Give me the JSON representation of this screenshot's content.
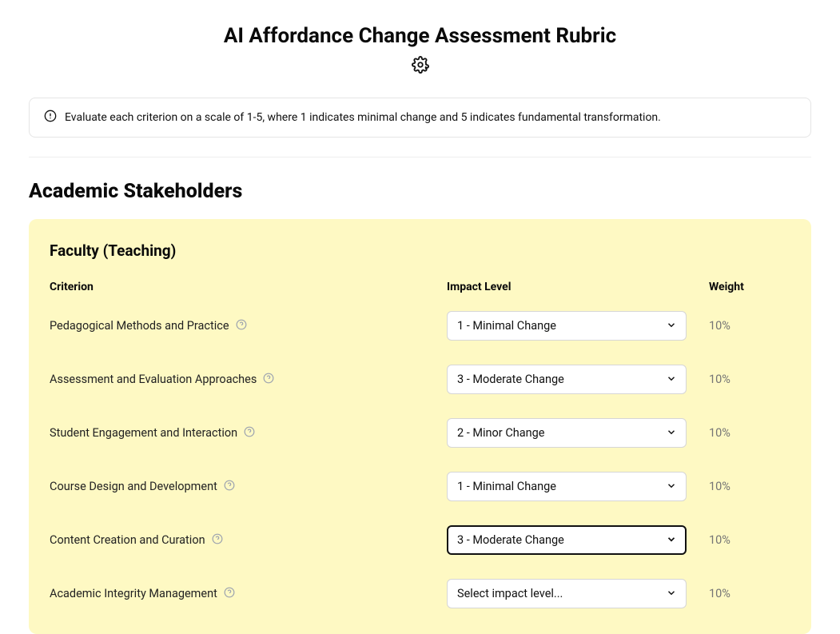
{
  "title": "AI Affordance Change Assessment Rubric",
  "info_text": "Evaluate each criterion on a scale of 1-5, where 1 indicates minimal change and 5 indicates fundamental transformation.",
  "section_title": "Academic Stakeholders",
  "card": {
    "title": "Faculty (Teaching)",
    "headers": {
      "criterion": "Criterion",
      "impact": "Impact Level",
      "weight": "Weight"
    },
    "rows": [
      {
        "label": "Pedagogical Methods and Practice",
        "selected": "1 - Minimal Change",
        "weight": "10%",
        "focused": false
      },
      {
        "label": "Assessment and Evaluation Approaches",
        "selected": "3 - Moderate Change",
        "weight": "10%",
        "focused": false
      },
      {
        "label": "Student Engagement and Interaction",
        "selected": "2 - Minor Change",
        "weight": "10%",
        "focused": false
      },
      {
        "label": "Course Design and Development",
        "selected": "1 - Minimal Change",
        "weight": "10%",
        "focused": false
      },
      {
        "label": "Content Creation and Curation",
        "selected": "3 - Moderate Change",
        "weight": "10%",
        "focused": true
      },
      {
        "label": "Academic Integrity Management",
        "selected": "Select impact level...",
        "weight": "10%",
        "focused": false
      }
    ]
  },
  "colors": {
    "card_bg": "#fef9c3",
    "border": "#e5e5e5",
    "text": "#111111",
    "muted": "#757575",
    "help_icon": "#9ca3af",
    "select_border": "#d6d6d6"
  }
}
